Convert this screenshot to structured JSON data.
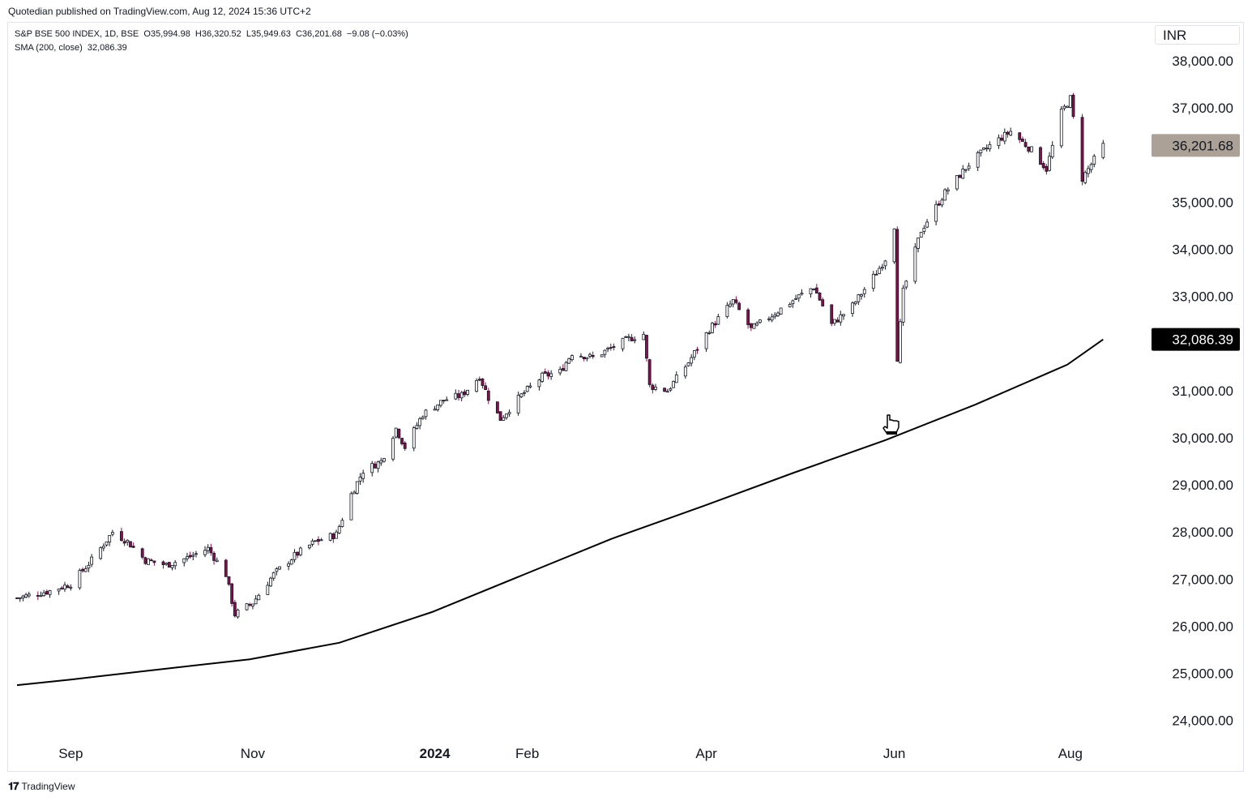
{
  "header": {
    "published": "Quotedian published on TradingView.com, Aug 12, 2024 15:36 UTC+2"
  },
  "legend": {
    "symbol": "S&P BSE 500 INDEX, 1D, BSE",
    "open": "O35,994.98",
    "high": "H36,320.52",
    "low": "L35,949.63",
    "close": "C36,201.68",
    "change": "−9.08 (−0.03%)",
    "indicator": "SMA (200, close)",
    "indicator_value": "32,086.39"
  },
  "currency": "INR",
  "footer": {
    "logo": "𝟏𝟕",
    "brand": "TradingView"
  },
  "colors": {
    "candle_up_fill": "#ffffff",
    "candle_down_fill": "#880e4f",
    "candle_border": "#131722",
    "sma_line": "#000000",
    "last_price_bg": "#aba196",
    "sma_label_bg": "#000000"
  },
  "cursor_icon": "hand-pointer-icon",
  "chart_data": {
    "type": "candlestick",
    "y_ticks": [
      "38,000.00",
      "37,000.00",
      "35,000.00",
      "34,000.00",
      "33,000.00",
      "31,000.00",
      "30,000.00",
      "29,000.00",
      "28,000.00",
      "27,000.00",
      "26,000.00",
      "25,000.00",
      "24,000.00"
    ],
    "ylim": [
      23600,
      38600
    ],
    "x_ticks": [
      {
        "label": "Sep",
        "date": "2023-09-01",
        "bold": false
      },
      {
        "label": "Nov",
        "date": "2023-11-01",
        "bold": false
      },
      {
        "label": "2024",
        "date": "2024-01-01",
        "bold": true
      },
      {
        "label": "Feb",
        "date": "2024-02-01",
        "bold": false
      },
      {
        "label": "Apr",
        "date": "2024-04-01",
        "bold": false
      },
      {
        "label": "Jun",
        "date": "2024-06-03",
        "bold": false
      },
      {
        "label": "Aug",
        "date": "2024-08-01",
        "bold": false
      }
    ],
    "last_price_label": "36,201.68",
    "sma_label": "32,086.39",
    "price_path": [
      [
        "2023-08-14",
        26600
      ],
      [
        "2023-08-25",
        26750
      ],
      [
        "2023-09-01",
        26900
      ],
      [
        "2023-09-08",
        27400
      ],
      [
        "2023-09-15",
        28000
      ],
      [
        "2023-09-20",
        27800
      ],
      [
        "2023-09-26",
        27400
      ],
      [
        "2023-10-03",
        27300
      ],
      [
        "2023-10-10",
        27450
      ],
      [
        "2023-10-17",
        27650
      ],
      [
        "2023-10-23",
        27100
      ],
      [
        "2023-10-26",
        26250
      ],
      [
        "2023-11-01",
        26500
      ],
      [
        "2023-11-08",
        27100
      ],
      [
        "2023-11-15",
        27500
      ],
      [
        "2023-11-22",
        27800
      ],
      [
        "2023-11-29",
        27950
      ],
      [
        "2023-12-04",
        28800
      ],
      [
        "2023-12-08",
        29300
      ],
      [
        "2023-12-14",
        29500
      ],
      [
        "2023-12-19",
        30200
      ],
      [
        "2023-12-22",
        29800
      ],
      [
        "2023-12-28",
        30500
      ],
      [
        "2024-01-04",
        30800
      ],
      [
        "2024-01-10",
        30900
      ],
      [
        "2024-01-16",
        31300
      ],
      [
        "2024-01-20",
        30700
      ],
      [
        "2024-01-23",
        30400
      ],
      [
        "2024-01-30",
        30900
      ],
      [
        "2024-02-06",
        31300
      ],
      [
        "2024-02-12",
        31400
      ],
      [
        "2024-02-16",
        31800
      ],
      [
        "2024-02-23",
        31700
      ],
      [
        "2024-02-29",
        31900
      ],
      [
        "2024-03-06",
        32100
      ],
      [
        "2024-03-11",
        32200
      ],
      [
        "2024-03-13",
        31100
      ],
      [
        "2024-03-19",
        31000
      ],
      [
        "2024-03-26",
        31600
      ],
      [
        "2024-04-02",
        32300
      ],
      [
        "2024-04-10",
        32900
      ],
      [
        "2024-04-16",
        32300
      ],
      [
        "2024-04-23",
        32600
      ],
      [
        "2024-05-02",
        33000
      ],
      [
        "2024-05-07",
        33200
      ],
      [
        "2024-05-13",
        32400
      ],
      [
        "2024-05-20",
        32800
      ],
      [
        "2024-05-28",
        33500
      ],
      [
        "2024-05-31",
        33800
      ],
      [
        "2024-06-03",
        34500
      ],
      [
        "2024-06-04",
        31700
      ],
      [
        "2024-06-06",
        33100
      ],
      [
        "2024-06-12",
        34400
      ],
      [
        "2024-06-20",
        35200
      ],
      [
        "2024-06-28",
        35800
      ],
      [
        "2024-07-05",
        36200
      ],
      [
        "2024-07-12",
        36500
      ],
      [
        "2024-07-19",
        36100
      ],
      [
        "2024-07-24",
        35700
      ],
      [
        "2024-07-29",
        36900
      ],
      [
        "2024-08-01",
        37200
      ],
      [
        "2024-08-05",
        35500
      ],
      [
        "2024-08-07",
        35700
      ],
      [
        "2024-08-12",
        36201.68
      ]
    ],
    "sma_path": [
      [
        "2023-08-14",
        24750
      ],
      [
        "2023-09-01",
        24870
      ],
      [
        "2023-09-30",
        25080
      ],
      [
        "2023-10-31",
        25300
      ],
      [
        "2023-11-30",
        25650
      ],
      [
        "2023-12-31",
        26300
      ],
      [
        "2024-01-31",
        27100
      ],
      [
        "2024-02-29",
        27850
      ],
      [
        "2024-03-31",
        28550
      ],
      [
        "2024-04-30",
        29250
      ],
      [
        "2024-05-31",
        29950
      ],
      [
        "2024-06-30",
        30700
      ],
      [
        "2024-07-31",
        31550
      ],
      [
        "2024-08-12",
        32086.39
      ]
    ]
  }
}
